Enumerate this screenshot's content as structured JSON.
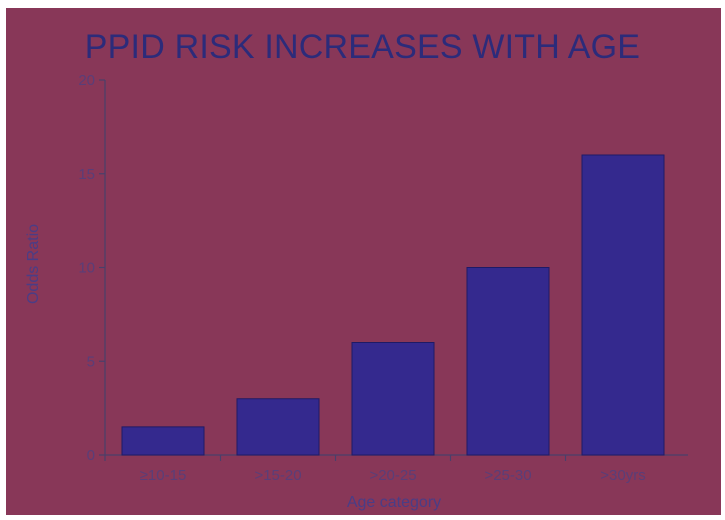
{
  "colors": {
    "background": "#883758",
    "bar": "#34298e",
    "title": "#2c2b7a",
    "axis_text": "#5a3e78"
  },
  "chart_data": {
    "type": "bar",
    "title": "PPID RISK INCREASES WITH AGE",
    "xlabel": "Age category",
    "ylabel": "Odds Ratio",
    "categories": [
      "≥10-15",
      ">15-20",
      ">20-25",
      ">25-30",
      ">30yrs"
    ],
    "values": [
      1.5,
      3,
      6,
      10,
      16
    ],
    "ylim": [
      0,
      20
    ],
    "yticks": [
      0,
      5,
      10,
      15,
      20
    ],
    "grid": false,
    "legend": "none"
  }
}
